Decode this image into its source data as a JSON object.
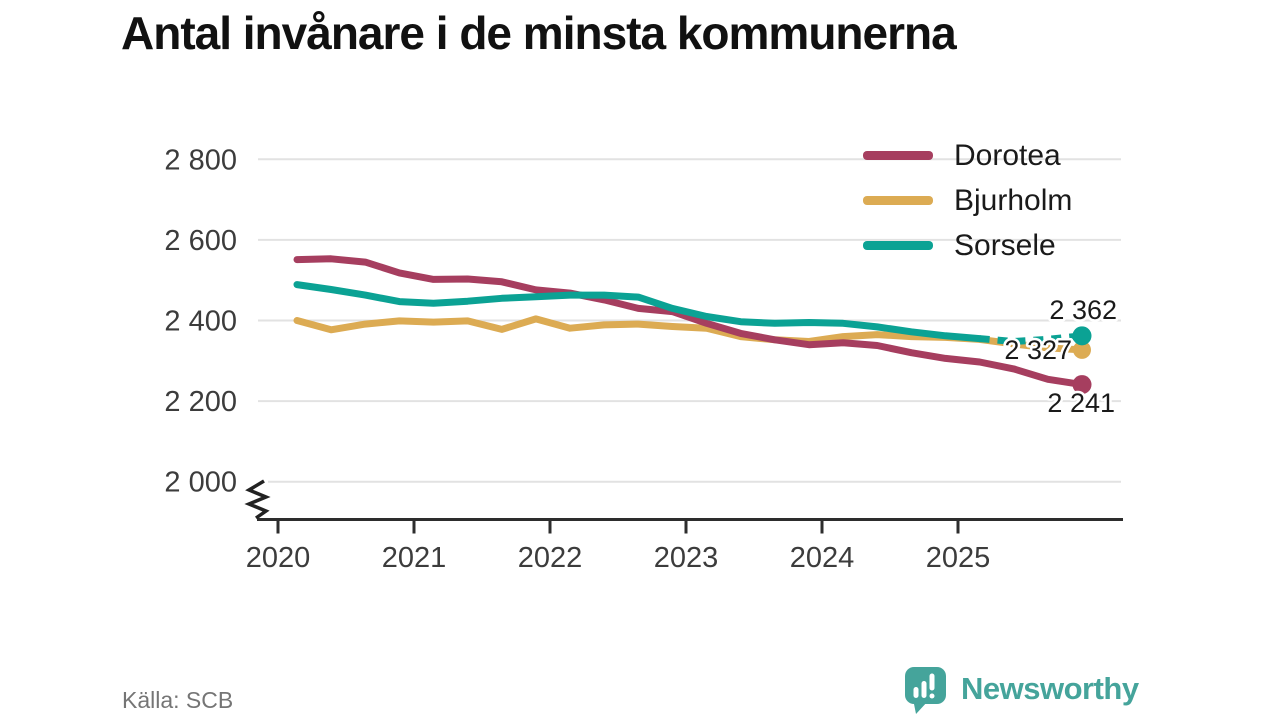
{
  "title": "Antal invånare i de minsta kommunerna",
  "source": "Källa: SCB",
  "branding": {
    "name": "Newsworthy",
    "logo_icon": "newsworthy-speech-bubble-bar-chart-icon",
    "color": "#45a49b"
  },
  "chart_data": {
    "type": "line",
    "title": "Antal invånare i de minsta kommunerna",
    "xlabel": "",
    "ylabel": "",
    "grid": "horizontal",
    "gridline_color": "#e2e2e2",
    "axis_color": "#2d2d2d",
    "tick_label_color": "#3c3c3c",
    "legend_position": "top-right",
    "axis_break_at_bottom": true,
    "ylim_shown": [
      2000,
      2800
    ],
    "yticks": [
      {
        "value": 2800,
        "label": "2 800"
      },
      {
        "value": 2600,
        "label": "2 600"
      },
      {
        "value": 2400,
        "label": "2 400"
      },
      {
        "value": 2200,
        "label": "2 200"
      },
      {
        "value": 2000,
        "label": "2 000"
      }
    ],
    "xticks": [
      {
        "value": 2020,
        "label": "2020"
      },
      {
        "value": 2021,
        "label": "2021"
      },
      {
        "value": 2022,
        "label": "2022"
      },
      {
        "value": 2023,
        "label": "2023"
      },
      {
        "value": 2024,
        "label": "2024"
      },
      {
        "value": 2025,
        "label": "2025"
      }
    ],
    "x": [
      "2020 Q1",
      "2020 Q2",
      "2020 Q3",
      "2020 Q4",
      "2021 Q1",
      "2021 Q2",
      "2021 Q3",
      "2021 Q4",
      "2022 Q1",
      "2022 Q2",
      "2022 Q3",
      "2022 Q4",
      "2023 Q1",
      "2023 Q2",
      "2023 Q3",
      "2023 Q4",
      "2024 Q1",
      "2024 Q2",
      "2024 Q3",
      "2024 Q4",
      "2025 Q1",
      "2025 Q2",
      "2025 Q3",
      "2025 Q4"
    ],
    "series": [
      {
        "name": "Dorotea",
        "color": "#a63e5f",
        "end_label": "2 241",
        "end_value": 2241,
        "values": [
          2551,
          2553,
          2545,
          2518,
          2502,
          2503,
          2496,
          2476,
          2468,
          2451,
          2430,
          2422,
          2393,
          2368,
          2352,
          2340,
          2345,
          2338,
          2320,
          2306,
          2297,
          2280,
          2254,
          2241
        ]
      },
      {
        "name": "Bjurholm",
        "color": "#dcab53",
        "end_label": "2 327",
        "end_value": 2327,
        "values": [
          2400,
          2377,
          2391,
          2399,
          2396,
          2399,
          2378,
          2404,
          2381,
          2389,
          2391,
          2385,
          2381,
          2360,
          2352,
          2348,
          2360,
          2365,
          2360,
          2358,
          2353,
          2342,
          2332,
          2327
        ]
      },
      {
        "name": "Sorsele",
        "color": "#0ba294",
        "end_label": "2 362",
        "end_value": 2362,
        "dashed_tail_from_index": 20,
        "values": [
          2489,
          2477,
          2463,
          2447,
          2443,
          2448,
          2455,
          2459,
          2463,
          2463,
          2458,
          2430,
          2410,
          2397,
          2393,
          2395,
          2393,
          2384,
          2372,
          2362,
          2355,
          2348,
          2353,
          2362
        ]
      }
    ]
  }
}
